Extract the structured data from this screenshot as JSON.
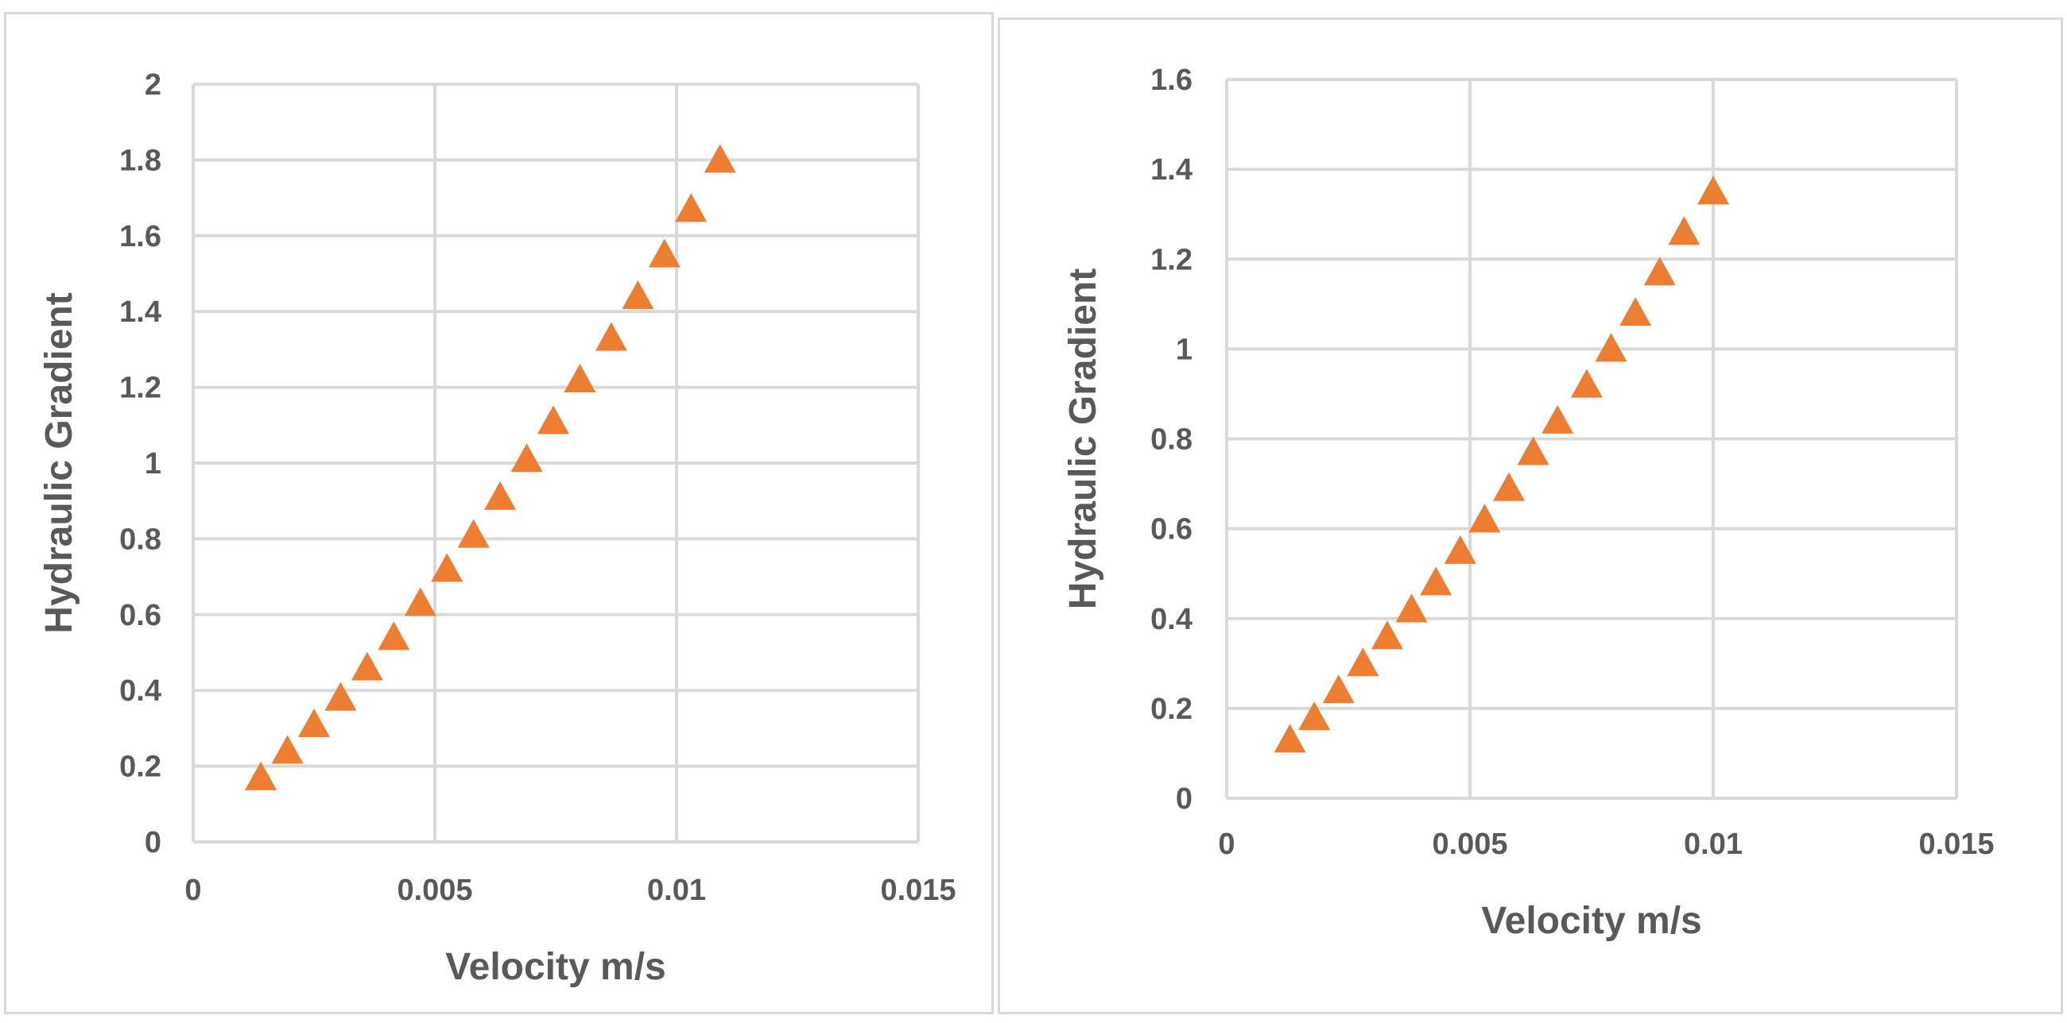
{
  "chart_data": [
    {
      "type": "scatter",
      "title": "",
      "xlabel": "Velocity m/s",
      "ylabel": "Hydraulic Gradient",
      "xlim": [
        0,
        0.015
      ],
      "ylim": [
        0,
        2
      ],
      "xticks": [
        "0",
        "0.005",
        "0.01",
        "0.015"
      ],
      "yticks": [
        "0",
        "0.2",
        "0.4",
        "0.6",
        "0.8",
        "1",
        "1.2",
        "1.4",
        "1.6",
        "1.8",
        "2"
      ],
      "grid": true,
      "marker": "triangle",
      "marker_color": "#ed7d31",
      "series": [
        {
          "name": "",
          "x": [
            0.0014,
            0.00195,
            0.0025,
            0.00305,
            0.0036,
            0.00415,
            0.0047,
            0.00525,
            0.0058,
            0.00635,
            0.0069,
            0.00745,
            0.008,
            0.00865,
            0.0092,
            0.00975,
            0.0103,
            0.0109
          ],
          "y": [
            0.17,
            0.24,
            0.31,
            0.38,
            0.46,
            0.54,
            0.63,
            0.72,
            0.81,
            0.91,
            1.01,
            1.11,
            1.22,
            1.33,
            1.44,
            1.55,
            1.67,
            1.8
          ]
        }
      ]
    },
    {
      "type": "scatter",
      "title": "",
      "xlabel": "Velocity m/s",
      "ylabel": "Hydraulic Gradient",
      "xlim": [
        0,
        0.015
      ],
      "ylim": [
        0,
        1.6
      ],
      "xticks": [
        "0",
        "0.005",
        "0.01",
        "0.015"
      ],
      "yticks": [
        "0",
        "0.2",
        "0.4",
        "0.6",
        "0.8",
        "1",
        "1.2",
        "1.4",
        "1.6"
      ],
      "grid": true,
      "marker": "triangle",
      "marker_color": "#ed7d31",
      "series": [
        {
          "name": "",
          "x": [
            0.0013,
            0.0018,
            0.0023,
            0.0028,
            0.0033,
            0.0038,
            0.0043,
            0.0048,
            0.0053,
            0.0058,
            0.0063,
            0.0068,
            0.0074,
            0.0079,
            0.0084,
            0.0089,
            0.0094,
            0.01
          ],
          "y": [
            0.13,
            0.18,
            0.24,
            0.3,
            0.36,
            0.42,
            0.48,
            0.55,
            0.62,
            0.69,
            0.77,
            0.84,
            0.92,
            1.0,
            1.08,
            1.17,
            1.26,
            1.35
          ]
        }
      ]
    }
  ]
}
